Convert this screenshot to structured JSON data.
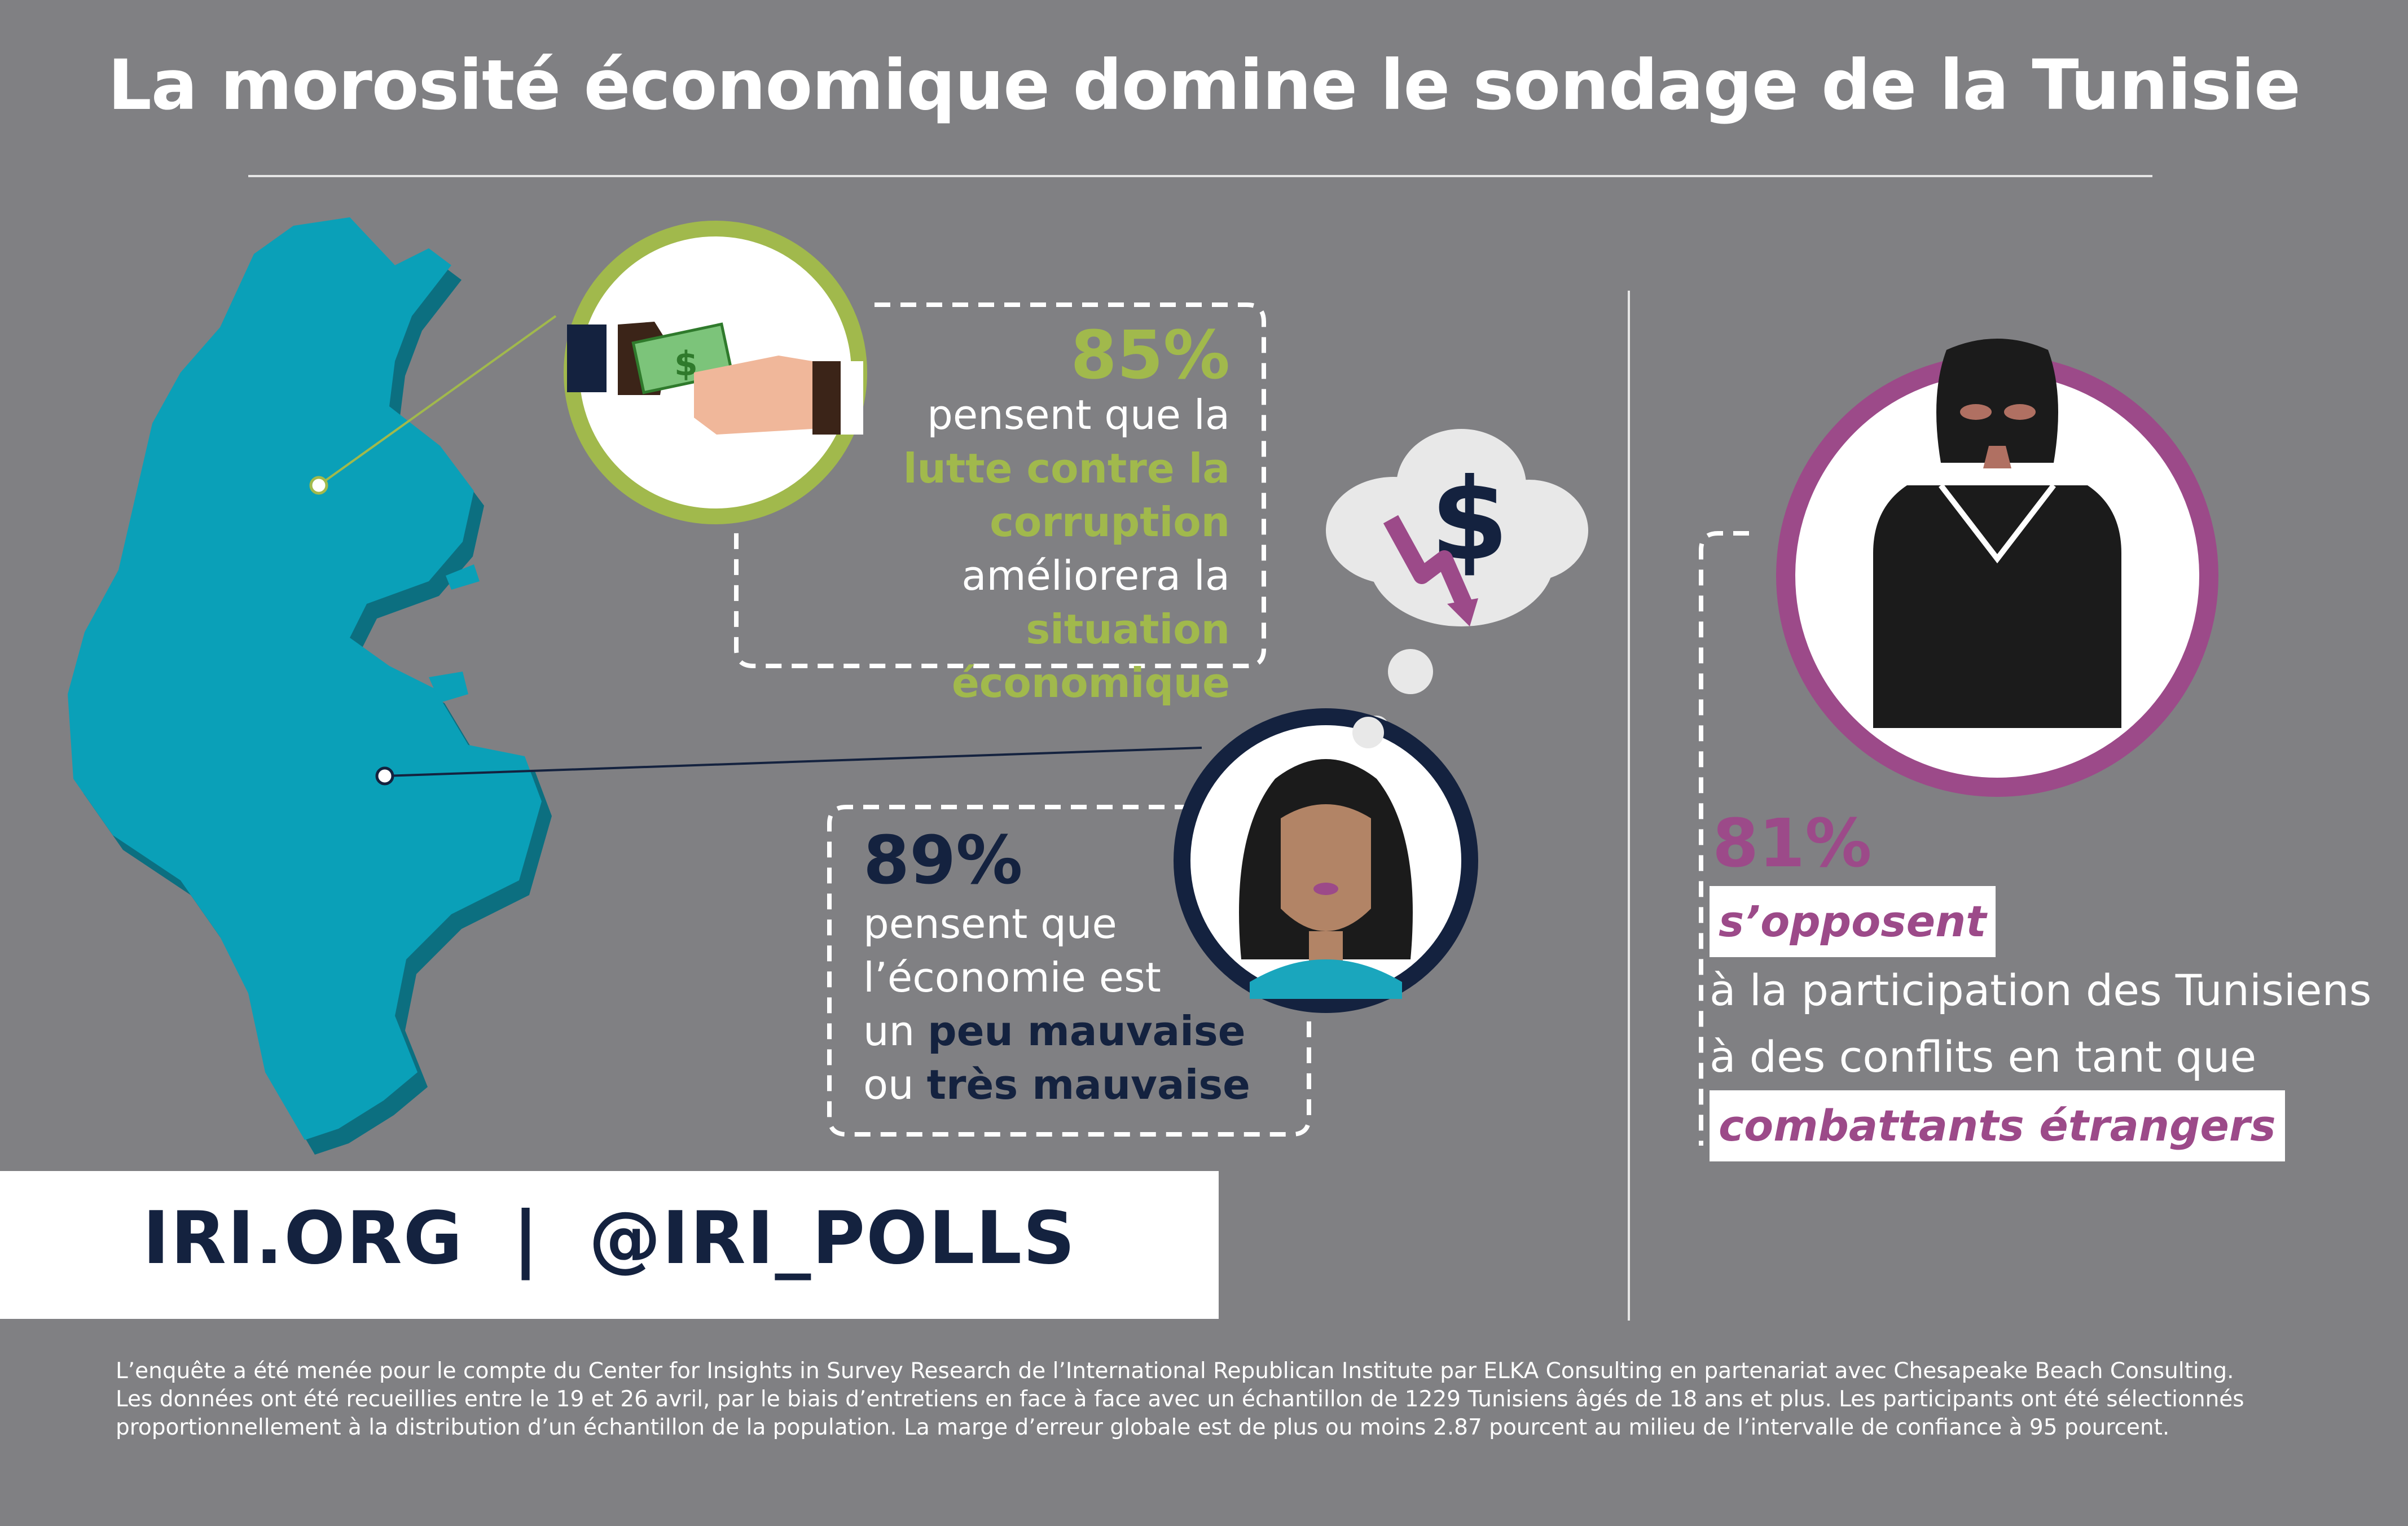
{
  "title": "La morosité économique domine le sondage de la Tunisie",
  "colors": {
    "background": "#808083",
    "map": "#0aa0b8",
    "green": "#a1b94c",
    "navy": "#14223f",
    "purple": "#9c4a89"
  },
  "corruption": {
    "percent": "85%",
    "line1": "pensent que la",
    "line2": "lutte contre la",
    "line3": "corruption",
    "line4": "améliorera la",
    "line5": "situation économique",
    "icon": "money-handover-icon"
  },
  "economy": {
    "percent": "89%",
    "line1": "pensent que",
    "line2": "l’économie est",
    "line3_prefix": "un ",
    "line3_bold": "peu mauvaise",
    "line4_prefix": "ou ",
    "line4_bold": "très mauvaise",
    "icon": "worried-woman-icon",
    "thought_icon": "dollar-falling-icon"
  },
  "fighters": {
    "percent": "81%",
    "highlight1": "s’opposent",
    "line1": "à la participation des Tunisiens",
    "line2": "à des conflits en tant que",
    "highlight2": "combattants étrangers",
    "icon": "masked-fighter-icon"
  },
  "links": {
    "site": "IRI.ORG",
    "separator": "|",
    "handle": "@IRI_POLLS"
  },
  "footnote": {
    "line1": "L’enquête a été menée pour le compte du Center for Insights in Survey Research de l’International Republican Institute par ELKA Consulting en partenariat avec Chesapeake Beach Consulting.",
    "line2": "Les données ont été recueillies entre le 19 et 26 avril, par le biais d’entretiens en face à face avec un échantillon de 1229 Tunisiens âgés de 18 ans et plus. Les participants ont été sélectionnés",
    "line3": "proportionnellement à la distribution d’un échantillon de la population. La marge d’erreur globale est de plus ou moins 2.87 pourcent au milieu de l’intervalle de confiance à 95 pourcent."
  }
}
